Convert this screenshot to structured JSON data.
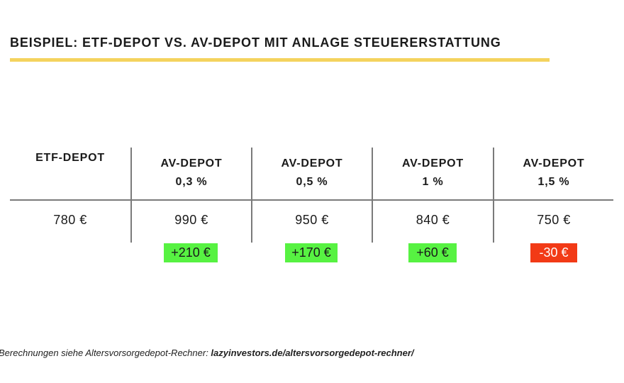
{
  "title": "BEISPIEL: ETF-DEPOT VS. AV-DEPOT MIT ANLAGE STEUERERSTATTUNG",
  "colors": {
    "underline": "#f4d35e",
    "positive": "#57f242",
    "negative": "#f23a16"
  },
  "table": {
    "columns": [
      {
        "line1": "ETF-DEPOT",
        "line2": "",
        "value": "780 €",
        "diff": ""
      },
      {
        "line1": "AV-DEPOT",
        "line2": "0,3 %",
        "value": "990 €",
        "diff": "+210 €"
      },
      {
        "line1": "AV-DEPOT",
        "line2": "0,5 %",
        "value": "950 €",
        "diff": "+170 €"
      },
      {
        "line1": "AV-DEPOT",
        "line2": "1 %",
        "value": "840 €",
        "diff": "+60 €"
      },
      {
        "line1": "AV-DEPOT",
        "line2": "1,5 %",
        "value": "750 €",
        "diff": "-30 €"
      }
    ]
  },
  "footer": {
    "text": "Berechnungen siehe Altersvorsorgedepot-Rechner: ",
    "link": "lazyinvestors.de/altersvorsorgedepot-rechner/"
  }
}
